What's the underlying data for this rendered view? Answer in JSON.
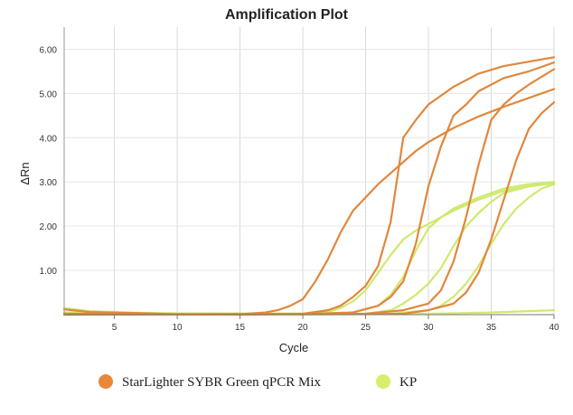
{
  "chart_data": {
    "type": "line",
    "title": "Amplification Plot",
    "xlabel": "Cycle",
    "ylabel": "ΔRn",
    "xlim": [
      1,
      40
    ],
    "ylim": [
      0,
      6.5
    ],
    "x_ticks": [
      5,
      10,
      15,
      20,
      25,
      30,
      35,
      40
    ],
    "y_ticks": [
      1.0,
      2.0,
      3.0,
      4.0,
      5.0,
      6.0
    ],
    "x_tick_labels": [
      "5",
      "10",
      "15",
      "20",
      "25",
      "30",
      "35",
      "40"
    ],
    "y_tick_labels": [
      "1.00",
      "2.00",
      "3.00",
      "4.00",
      "5.00",
      "6.00"
    ],
    "grid": true,
    "legend": [
      {
        "name": "StarLighter SYBR Green qPCR Mix",
        "color": "#e8883a"
      },
      {
        "name": "KP",
        "color": "#d4ef6a"
      }
    ],
    "series": [
      {
        "group": "StarLighter SYBR Green qPCR Mix",
        "color": "#e0873d",
        "points": [
          [
            1,
            0.12
          ],
          [
            3,
            0.06
          ],
          [
            6,
            0.04
          ],
          [
            10,
            0.01
          ],
          [
            15,
            0.01
          ],
          [
            17,
            0.05
          ],
          [
            18,
            0.1
          ],
          [
            19,
            0.2
          ],
          [
            20,
            0.35
          ],
          [
            21,
            0.75
          ],
          [
            22,
            1.25
          ],
          [
            23,
            1.85
          ],
          [
            24,
            2.35
          ],
          [
            25,
            2.65
          ],
          [
            26,
            2.95
          ],
          [
            27,
            3.2
          ],
          [
            28,
            3.45
          ],
          [
            29,
            3.7
          ],
          [
            30,
            3.9
          ],
          [
            32,
            4.22
          ],
          [
            34,
            4.48
          ],
          [
            36,
            4.7
          ],
          [
            38,
            4.9
          ],
          [
            40,
            5.1
          ]
        ]
      },
      {
        "group": "StarLighter SYBR Green qPCR Mix",
        "color": "#e0873d",
        "points": [
          [
            1,
            0.02
          ],
          [
            15,
            0.0
          ],
          [
            20,
            0.02
          ],
          [
            22,
            0.1
          ],
          [
            23,
            0.2
          ],
          [
            24,
            0.4
          ],
          [
            25,
            0.65
          ],
          [
            26,
            1.1
          ],
          [
            27,
            2.1
          ],
          [
            28,
            4.0
          ],
          [
            29,
            4.4
          ],
          [
            30,
            4.75
          ],
          [
            32,
            5.15
          ],
          [
            34,
            5.45
          ],
          [
            36,
            5.62
          ],
          [
            38,
            5.72
          ],
          [
            40,
            5.82
          ]
        ]
      },
      {
        "group": "StarLighter SYBR Green qPCR Mix",
        "color": "#e0873d",
        "points": [
          [
            1,
            0.01
          ],
          [
            20,
            0.01
          ],
          [
            24,
            0.05
          ],
          [
            26,
            0.2
          ],
          [
            27,
            0.4
          ],
          [
            28,
            0.75
          ],
          [
            29,
            1.6
          ],
          [
            30,
            2.9
          ],
          [
            31,
            3.8
          ],
          [
            32,
            4.5
          ],
          [
            33,
            4.75
          ],
          [
            34,
            5.05
          ],
          [
            36,
            5.35
          ],
          [
            38,
            5.5
          ],
          [
            40,
            5.7
          ]
        ]
      },
      {
        "group": "StarLighter SYBR Green qPCR Mix",
        "color": "#e0873d",
        "points": [
          [
            1,
            0.0
          ],
          [
            25,
            0.02
          ],
          [
            28,
            0.1
          ],
          [
            30,
            0.25
          ],
          [
            31,
            0.55
          ],
          [
            32,
            1.2
          ],
          [
            33,
            2.2
          ],
          [
            34,
            3.4
          ],
          [
            35,
            4.4
          ],
          [
            36,
            4.75
          ],
          [
            37,
            5.0
          ],
          [
            38,
            5.2
          ],
          [
            40,
            5.55
          ]
        ]
      },
      {
        "group": "StarLighter SYBR Green qPCR Mix",
        "color": "#e0873d",
        "points": [
          [
            1,
            0.0
          ],
          [
            28,
            0.02
          ],
          [
            30,
            0.1
          ],
          [
            32,
            0.25
          ],
          [
            33,
            0.5
          ],
          [
            34,
            0.95
          ],
          [
            35,
            1.7
          ],
          [
            36,
            2.6
          ],
          [
            37,
            3.5
          ],
          [
            38,
            4.2
          ],
          [
            39,
            4.55
          ],
          [
            40,
            4.8
          ]
        ]
      },
      {
        "group": "KP",
        "color": "#cfe96e",
        "points": [
          [
            1,
            0.15
          ],
          [
            3,
            0.08
          ],
          [
            6,
            0.05
          ],
          [
            10,
            0.02
          ],
          [
            20,
            0.02
          ],
          [
            22,
            0.06
          ],
          [
            23,
            0.15
          ],
          [
            24,
            0.3
          ],
          [
            25,
            0.55
          ],
          [
            26,
            0.95
          ],
          [
            27,
            1.35
          ],
          [
            28,
            1.7
          ],
          [
            29,
            1.9
          ],
          [
            30,
            2.05
          ],
          [
            31,
            2.2
          ],
          [
            32,
            2.35
          ],
          [
            34,
            2.6
          ],
          [
            36,
            2.8
          ],
          [
            38,
            2.9
          ],
          [
            40,
            2.98
          ]
        ]
      },
      {
        "group": "KP",
        "color": "#cfe96e",
        "points": [
          [
            1,
            0.05
          ],
          [
            20,
            0.01
          ],
          [
            24,
            0.05
          ],
          [
            26,
            0.2
          ],
          [
            27,
            0.45
          ],
          [
            28,
            0.85
          ],
          [
            29,
            1.45
          ],
          [
            30,
            1.95
          ],
          [
            31,
            2.2
          ],
          [
            32,
            2.4
          ],
          [
            34,
            2.65
          ],
          [
            36,
            2.85
          ],
          [
            38,
            2.95
          ],
          [
            40,
            3.0
          ]
        ]
      },
      {
        "group": "KP",
        "color": "#cfe96e",
        "points": [
          [
            1,
            0.03
          ],
          [
            25,
            0.02
          ],
          [
            27,
            0.1
          ],
          [
            28,
            0.25
          ],
          [
            29,
            0.45
          ],
          [
            30,
            0.7
          ],
          [
            31,
            1.05
          ],
          [
            32,
            1.55
          ],
          [
            33,
            2.0
          ],
          [
            34,
            2.3
          ],
          [
            35,
            2.55
          ],
          [
            36,
            2.75
          ],
          [
            38,
            2.9
          ],
          [
            40,
            2.97
          ]
        ]
      },
      {
        "group": "KP",
        "color": "#cfe96e",
        "points": [
          [
            1,
            0.02
          ],
          [
            27,
            0.02
          ],
          [
            30,
            0.1
          ],
          [
            31,
            0.2
          ],
          [
            32,
            0.4
          ],
          [
            33,
            0.7
          ],
          [
            34,
            1.1
          ],
          [
            35,
            1.6
          ],
          [
            36,
            2.05
          ],
          [
            37,
            2.4
          ],
          [
            38,
            2.65
          ],
          [
            39,
            2.85
          ],
          [
            40,
            2.95
          ]
        ]
      },
      {
        "group": "KP",
        "color": "#cfe96e",
        "points": [
          [
            1,
            0.02
          ],
          [
            20,
            0.0
          ],
          [
            30,
            0.02
          ],
          [
            35,
            0.05
          ],
          [
            40,
            0.1
          ]
        ]
      }
    ]
  }
}
